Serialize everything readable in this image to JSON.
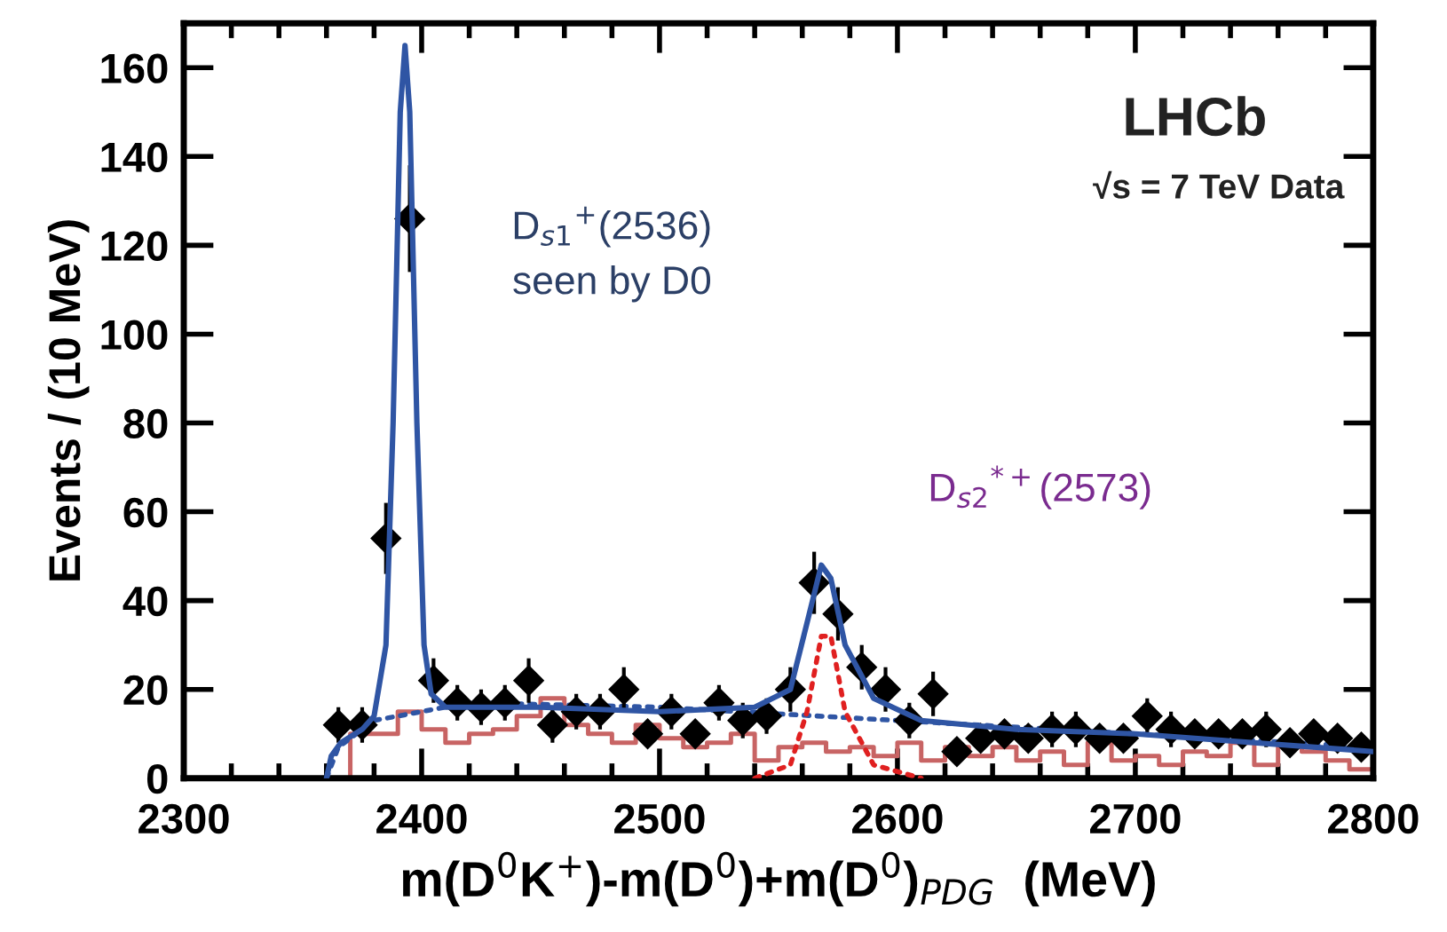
{
  "chart_data": {
    "type": "scatter",
    "xlabel": "m(D$^{0}$K$^{+}$)-m(D$^{0}$)+m(D$^{0}$)$_{PDG}$  (MeV)",
    "ylabel": "Events / (10 MeV)",
    "xlim": [
      2300,
      2800
    ],
    "xticks": [
      2300,
      2400,
      2500,
      2600,
      2700,
      2800
    ],
    "ylim": [
      0,
      170
    ],
    "yticks": [
      0,
      20,
      40,
      60,
      80,
      100,
      120,
      140,
      160
    ],
    "grid": false,
    "legend": false,
    "annotations": [
      "LHCb",
      "√s = 7 TeV Data",
      "D$_{s1}$$^{+}$(2536)",
      "seen by D0",
      "D$_{s2}$$^{*+}$(2573)"
    ],
    "series": [
      {
        "type": "step",
        "color": "#c86464",
        "line_style": "solid",
        "x": [
          2300,
          2370,
          2380,
          2390,
          2400,
          2410,
          2420,
          2430,
          2440,
          2450,
          2460,
          2470,
          2480,
          2490,
          2500,
          2510,
          2520,
          2530,
          2540,
          2550,
          2560,
          2570,
          2580,
          2590,
          2600,
          2610,
          2620,
          2630,
          2640,
          2650,
          2660,
          2670,
          2680,
          2690,
          2700,
          2710,
          2720,
          2730,
          2740,
          2750,
          2760,
          2770,
          2780,
          2790,
          2800
        ],
        "values": [
          0,
          10,
          10,
          15,
          11,
          8,
          10,
          11,
          14,
          18,
          12,
          10,
          8,
          12,
          9,
          7,
          8,
          10,
          4,
          7,
          8,
          6,
          7,
          5,
          8,
          4,
          7,
          5,
          7,
          4,
          6,
          3,
          8,
          4,
          5,
          3,
          6,
          5,
          8,
          3,
          8,
          6,
          4,
          2,
          2
        ]
      },
      {
        "type": "line",
        "color": "#2f55a4",
        "line_style": "dotted",
        "x": [
          2360,
          2365,
          2380,
          2420,
          2500,
          2600,
          2700,
          2800
        ],
        "values": [
          0,
          7,
          13,
          17,
          16,
          13,
          10,
          7
        ]
      },
      {
        "type": "line",
        "color": "#e02020",
        "line_style": "dotted",
        "x": [
          2540,
          2555,
          2562,
          2568,
          2572,
          2578,
          2590,
          2610
        ],
        "values": [
          0,
          3,
          15,
          32,
          32,
          15,
          3,
          0
        ]
      },
      {
        "type": "line",
        "color": "#2f55a4",
        "line_style": "solid",
        "x": [
          2360,
          2362,
          2366,
          2375,
          2380,
          2385,
          2388,
          2391,
          2393,
          2395,
          2398,
          2401,
          2404,
          2410,
          2450,
          2500,
          2540,
          2555,
          2562,
          2568,
          2572,
          2578,
          2590,
          2610,
          2650,
          2700,
          2750,
          2800
        ],
        "values": [
          0,
          5,
          8,
          11,
          14,
          30,
          80,
          150,
          165,
          150,
          80,
          30,
          19,
          16,
          16,
          15,
          16,
          20,
          35,
          48,
          45,
          30,
          18,
          13,
          11,
          10,
          8,
          6
        ]
      },
      {
        "type": "scatter",
        "color": "#000000",
        "marker": "diamond",
        "x": [
          2365,
          2375,
          2385,
          2395,
          2405,
          2415,
          2425,
          2435,
          2445,
          2455,
          2465,
          2475,
          2485,
          2495,
          2505,
          2515,
          2525,
          2535,
          2545,
          2555,
          2565,
          2575,
          2585,
          2595,
          2605,
          2615,
          2625,
          2635,
          2645,
          2655,
          2665,
          2675,
          2685,
          2695,
          2705,
          2715,
          2725,
          2735,
          2745,
          2755,
          2765,
          2775,
          2785,
          2795
        ],
        "values": [
          12,
          12,
          54,
          126,
          22,
          17,
          16,
          17,
          22,
          12,
          15,
          15,
          20,
          10,
          15,
          10,
          17,
          13,
          14,
          20,
          44,
          37,
          25,
          20,
          13,
          19,
          6,
          9,
          10,
          9,
          11,
          11,
          9,
          9,
          14,
          11,
          10,
          10,
          10,
          11,
          8,
          10,
          9,
          7
        ],
        "errors": [
          4,
          4,
          8,
          12,
          5,
          4,
          4,
          4,
          5,
          4,
          4,
          4,
          5,
          3,
          4,
          3,
          4,
          4,
          4,
          5,
          7,
          6,
          5,
          5,
          4,
          5,
          3,
          3,
          3,
          3,
          4,
          4,
          3,
          3,
          4,
          4,
          3,
          3,
          3,
          4,
          3,
          3,
          3,
          3
        ]
      }
    ]
  }
}
